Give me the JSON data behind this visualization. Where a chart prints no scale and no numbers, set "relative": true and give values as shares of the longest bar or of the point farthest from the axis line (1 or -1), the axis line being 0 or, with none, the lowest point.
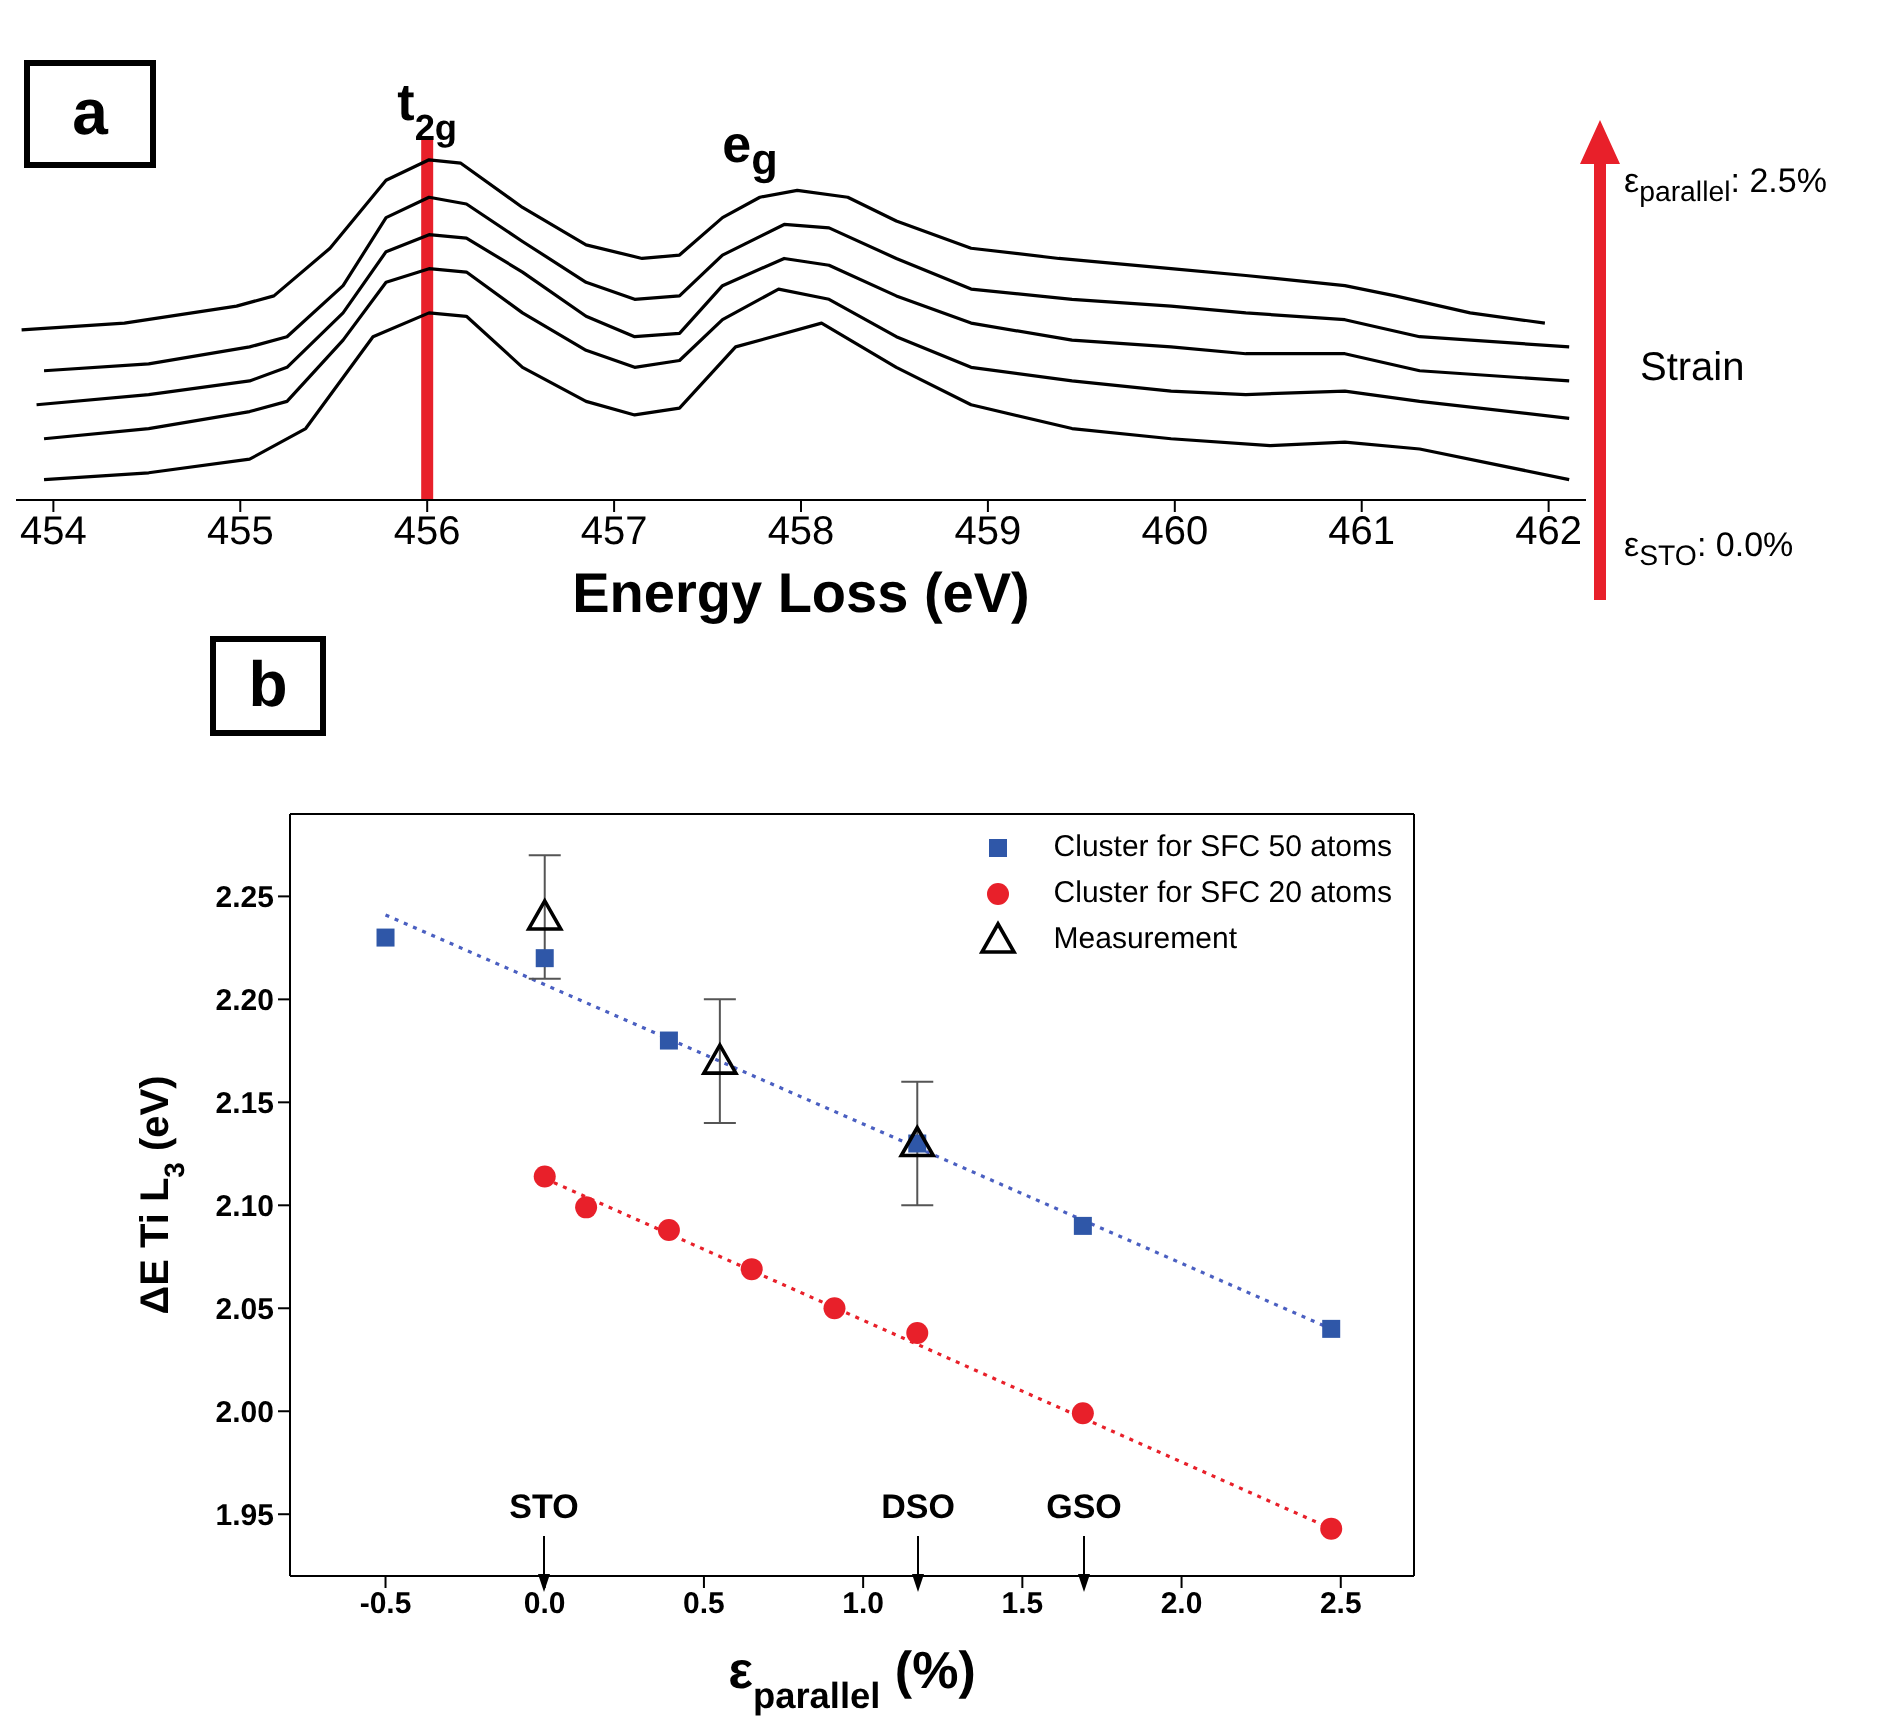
{
  "chart_data": [
    {
      "type": "line",
      "relative": true,
      "xlabel": "Energy Loss (eV)",
      "xlim": [
        453.8,
        462.2
      ],
      "xticks": [
        454,
        455,
        456,
        457,
        458,
        459,
        460,
        461,
        462
      ],
      "series": [
        {
          "color": "#000000",
          "x": [
            453.83,
            454.38,
            454.98,
            455.18,
            455.48,
            455.78,
            456.01,
            456.18,
            456.51,
            456.85,
            457.15,
            457.35,
            457.58,
            457.78,
            457.98,
            458.25,
            458.51,
            458.91,
            459.38,
            459.98,
            460.38,
            460.91,
            461.18,
            461.58,
            461.98
          ],
          "values": [
            0.5,
            0.52,
            0.57,
            0.6,
            0.74,
            0.94,
            1.0,
            0.99,
            0.86,
            0.75,
            0.71,
            0.72,
            0.83,
            0.89,
            0.91,
            0.89,
            0.82,
            0.74,
            0.71,
            0.68,
            0.66,
            0.63,
            0.6,
            0.55,
            0.52
          ]
        },
        {
          "color": "#000000",
          "x": [
            453.95,
            454.51,
            455.05,
            455.25,
            455.55,
            455.78,
            456.01,
            456.21,
            456.51,
            456.85,
            457.11,
            457.35,
            457.58,
            457.91,
            458.15,
            458.51,
            458.91,
            459.45,
            459.98,
            460.38,
            460.91,
            461.31,
            462.11
          ],
          "values": [
            0.38,
            0.4,
            0.45,
            0.48,
            0.63,
            0.83,
            0.89,
            0.87,
            0.76,
            0.64,
            0.59,
            0.6,
            0.72,
            0.81,
            0.8,
            0.71,
            0.62,
            0.59,
            0.57,
            0.55,
            0.53,
            0.48,
            0.45
          ]
        },
        {
          "color": "#000000",
          "x": [
            453.91,
            454.51,
            455.05,
            455.25,
            455.55,
            455.78,
            456.01,
            456.21,
            456.51,
            456.85,
            457.11,
            457.35,
            457.58,
            457.91,
            458.15,
            458.51,
            458.91,
            459.45,
            459.98,
            460.38,
            460.91,
            461.31,
            462.11
          ],
          "values": [
            0.28,
            0.31,
            0.35,
            0.39,
            0.55,
            0.73,
            0.78,
            0.77,
            0.67,
            0.54,
            0.48,
            0.49,
            0.63,
            0.71,
            0.69,
            0.6,
            0.52,
            0.47,
            0.45,
            0.43,
            0.43,
            0.38,
            0.35
          ]
        },
        {
          "color": "#000000",
          "x": [
            453.95,
            454.51,
            455.05,
            455.25,
            455.55,
            455.78,
            456.01,
            456.21,
            456.51,
            456.85,
            457.11,
            457.35,
            457.58,
            457.88,
            458.15,
            458.51,
            458.91,
            459.45,
            459.98,
            460.38,
            460.91,
            461.31,
            462.11
          ],
          "values": [
            0.18,
            0.21,
            0.26,
            0.29,
            0.47,
            0.64,
            0.68,
            0.67,
            0.55,
            0.44,
            0.39,
            0.41,
            0.53,
            0.62,
            0.59,
            0.48,
            0.39,
            0.35,
            0.32,
            0.31,
            0.32,
            0.29,
            0.24
          ]
        },
        {
          "color": "#000000",
          "x": [
            453.95,
            454.51,
            455.05,
            455.35,
            455.71,
            456.01,
            456.21,
            456.51,
            456.85,
            457.11,
            457.35,
            457.65,
            458.11,
            458.51,
            458.91,
            459.45,
            459.98,
            460.51,
            460.91,
            461.31,
            462.11
          ],
          "values": [
            0.06,
            0.08,
            0.12,
            0.21,
            0.48,
            0.55,
            0.54,
            0.39,
            0.29,
            0.25,
            0.27,
            0.45,
            0.52,
            0.39,
            0.28,
            0.21,
            0.18,
            0.16,
            0.17,
            0.15,
            0.06
          ]
        }
      ],
      "ref_lines": [
        {
          "axis": "x",
          "value": 456,
          "label": "t$_{2g}$",
          "color": "#e8202a"
        }
      ],
      "annotations": [
        "a",
        "e$_{g}$",
        "ε$_{parallel}$: 2.5%",
        "Strain",
        "ε$_{STO}$: 0.0%"
      ]
    },
    {
      "type": "scatter",
      "xlabel": "ε$_{parallel}$ (%)",
      "ylabel": "ΔE Ti L$_{3}$ (eV)",
      "xlim": [
        -0.8,
        2.73
      ],
      "xticks": [
        -0.5,
        {
          "value": 0,
          "label": "0.0"
        },
        0.5,
        {
          "value": 1,
          "label": "1.0"
        },
        1.5,
        {
          "value": 2,
          "label": "2.0"
        },
        2.5
      ],
      "ylim": [
        1.92,
        2.29
      ],
      "yticks": [
        1.95,
        {
          "value": 2,
          "label": "2.00"
        },
        2.05,
        {
          "value": 2.1,
          "label": "2.10"
        },
        2.15,
        {
          "value": 2.2,
          "label": "2.20"
        },
        2.25
      ],
      "legend": "top right",
      "series": [
        {
          "type": "line",
          "color": "#4a5fc1",
          "line_style": "dotted",
          "marker": "none",
          "x": [
            -0.5,
            2.47
          ],
          "values": [
            2.241,
            2.04
          ]
        },
        {
          "type": "line",
          "color": "#e8202a",
          "line_style": "dotted",
          "marker": "none",
          "x": [
            0,
            2.47
          ],
          "values": [
            2.113,
            1.943
          ]
        },
        {
          "name": "Cluster for SFC 50 atoms",
          "color": "#2f57a8",
          "marker": "square",
          "x": [
            -0.5,
            0,
            0.39,
            1.17,
            1.69,
            2.47
          ],
          "values": [
            2.23,
            2.22,
            2.18,
            2.13,
            2.09,
            2.04
          ]
        },
        {
          "name": "Cluster for SFC 20 atoms",
          "color": "#e8202a",
          "marker": "circle",
          "x": [
            0,
            0.13,
            0.39,
            0.65,
            0.91,
            1.17,
            1.69,
            2.47
          ],
          "values": [
            2.114,
            2.099,
            2.088,
            2.069,
            2.05,
            2.038,
            1.999,
            1.943
          ]
        },
        {
          "name": "Measurement",
          "color": "#000000",
          "marker": "triangle",
          "x": [
            0,
            0.55,
            1.17
          ],
          "values": [
            2.24,
            2.17,
            2.13
          ],
          "errors": [
            0.03,
            0.03,
            0.03
          ]
        }
      ],
      "annotations": [
        "b",
        "STO",
        "DSO",
        "GSO"
      ]
    }
  ]
}
